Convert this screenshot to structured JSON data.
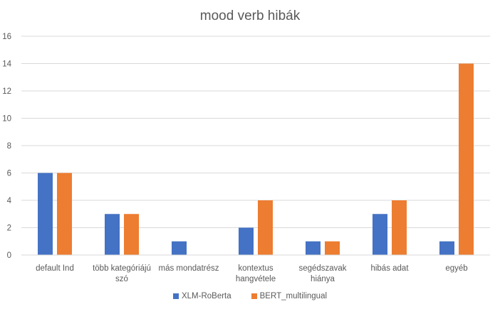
{
  "chart_data": {
    "type": "bar",
    "title": "mood verb hibák",
    "categories": [
      [
        "default Ind"
      ],
      [
        "több kategóriájú",
        "szó"
      ],
      [
        "más mondatrész"
      ],
      [
        "kontextus",
        "hangvétele"
      ],
      [
        "segédszavak",
        "hiánya"
      ],
      [
        "hibás adat"
      ],
      [
        "egyéb"
      ]
    ],
    "series": [
      {
        "name": "XLM-RoBerta",
        "color": "#4472C4",
        "values": [
          6,
          3,
          1,
          2,
          1,
          3,
          1
        ]
      },
      {
        "name": "BERT_multilingual",
        "color": "#ED7D31",
        "values": [
          6,
          3,
          0,
          4,
          1,
          4,
          14
        ]
      }
    ],
    "ylim": [
      0,
      16
    ],
    "yticks": [
      0,
      2,
      4,
      6,
      8,
      10,
      12,
      14,
      16
    ],
    "grid": true,
    "legend": "bottom"
  }
}
